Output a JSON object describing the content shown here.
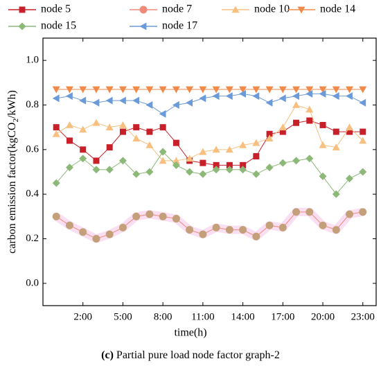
{
  "chart_data": {
    "type": "line",
    "caption_label": "(c)",
    "caption": "Partial pure load node factor graph-2",
    "xlabel": "time(h)",
    "ylabel_parts": [
      "carbon emission factor(kgCO",
      "2",
      "/kWh)"
    ],
    "x": [
      0,
      1,
      2,
      3,
      4,
      5,
      6,
      7,
      8,
      9,
      10,
      11,
      12,
      13,
      14,
      15,
      16,
      17,
      18,
      19,
      20,
      21,
      22,
      23
    ],
    "xlim": [
      -1,
      24
    ],
    "xticks": [
      {
        "value": 2,
        "label": "2:00"
      },
      {
        "value": 5,
        "label": "5:00"
      },
      {
        "value": 8,
        "label": "8:00"
      },
      {
        "value": 11,
        "label": "11:00"
      },
      {
        "value": 14,
        "label": "14:00"
      },
      {
        "value": 17,
        "label": "17:00"
      },
      {
        "value": 20,
        "label": "20:00"
      },
      {
        "value": 23,
        "label": "23:00"
      }
    ],
    "ylim": [
      -0.1,
      1.1
    ],
    "yticks": [
      {
        "value": 0,
        "label": "0.0"
      },
      0.2,
      0.4,
      0.6,
      0.8,
      {
        "value": 1,
        "label": "1.0"
      }
    ],
    "series": [
      {
        "name": "node 5",
        "color": "#c8202a",
        "marker": "square",
        "values": [
          0.7,
          0.64,
          0.6,
          0.55,
          0.61,
          0.68,
          0.7,
          0.68,
          0.7,
          0.63,
          0.55,
          0.54,
          0.53,
          0.53,
          0.53,
          0.57,
          0.67,
          0.68,
          0.72,
          0.73,
          0.71,
          0.68,
          0.68,
          0.68
        ]
      },
      {
        "name": "node 7",
        "color": "#f08a7a",
        "marker": "circle",
        "values": [
          0.3,
          0.26,
          0.23,
          0.2,
          0.22,
          0.25,
          0.3,
          0.31,
          0.3,
          0.29,
          0.24,
          0.22,
          0.25,
          0.24,
          0.24,
          0.21,
          0.26,
          0.25,
          0.32,
          0.32,
          0.26,
          0.24,
          0.31,
          0.32
        ]
      },
      {
        "name": "node 10",
        "color": "#f7c080",
        "marker": "triangle-up",
        "values": [
          0.67,
          0.71,
          0.69,
          0.72,
          0.7,
          0.71,
          0.65,
          0.62,
          0.55,
          0.55,
          0.56,
          0.59,
          0.6,
          0.6,
          0.62,
          0.63,
          0.65,
          0.7,
          0.8,
          0.78,
          0.62,
          0.61,
          0.7,
          0.64
        ]
      },
      {
        "name": "node 14",
        "color": "#f08a4a",
        "marker": "triangle-down",
        "values": [
          0.87,
          0.87,
          0.87,
          0.87,
          0.87,
          0.87,
          0.87,
          0.87,
          0.87,
          0.87,
          0.87,
          0.87,
          0.87,
          0.87,
          0.87,
          0.87,
          0.87,
          0.87,
          0.87,
          0.87,
          0.87,
          0.87,
          0.87,
          0.87
        ]
      },
      {
        "name": "node 15",
        "color": "#8cb878",
        "marker": "diamond",
        "values": [
          0.45,
          0.52,
          0.56,
          0.51,
          0.51,
          0.55,
          0.49,
          0.5,
          0.59,
          0.53,
          0.5,
          0.49,
          0.51,
          0.51,
          0.51,
          0.49,
          0.52,
          0.54,
          0.55,
          0.56,
          0.48,
          0.4,
          0.47,
          0.5
        ]
      },
      {
        "name": "node 17",
        "color": "#6a9ad8",
        "marker": "triangle-left",
        "values": [
          0.83,
          0.84,
          0.82,
          0.81,
          0.82,
          0.82,
          0.82,
          0.8,
          0.76,
          0.8,
          0.81,
          0.83,
          0.84,
          0.84,
          0.85,
          0.84,
          0.81,
          0.83,
          0.84,
          0.85,
          0.85,
          0.84,
          0.84,
          0.81
        ]
      }
    ]
  }
}
